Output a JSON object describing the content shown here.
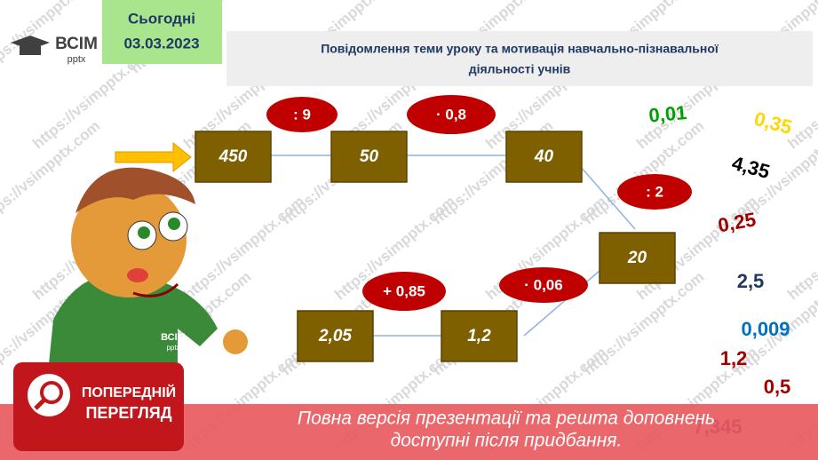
{
  "header": {
    "logo": "ВСІМ",
    "logo_sub": "pptx",
    "date_label": "Сьогодні",
    "date": "03.03.2023",
    "title_line1": "Повідомлення теми уроку та мотивація навчально-пізнавальної",
    "title_line2": "діяльності учнів"
  },
  "watermark": "https://vsimpptx.com",
  "chain": {
    "boxes": [
      "450",
      "50",
      "40",
      "20",
      "1,2",
      "2,05"
    ],
    "operations": [
      ": 9",
      "· 0,8",
      ": 2",
      "· 0,06",
      "+ 0,85"
    ]
  },
  "answers": [
    "0,01",
    "0,35",
    "4,35",
    "0,25",
    "2,5",
    "0,009",
    "1,2",
    "0,5",
    "7,345"
  ],
  "character": {
    "shirt_logo": "ВСІМ",
    "shirt_sub": "pptx"
  },
  "banner": {
    "badge_line1": "ПОПЕРЕДНІЙ",
    "badge_line2": "ПЕРЕГЛЯД",
    "message_line1": "Повна версія презентації та решта доповнень",
    "message_line2": "доступні після придбання."
  }
}
